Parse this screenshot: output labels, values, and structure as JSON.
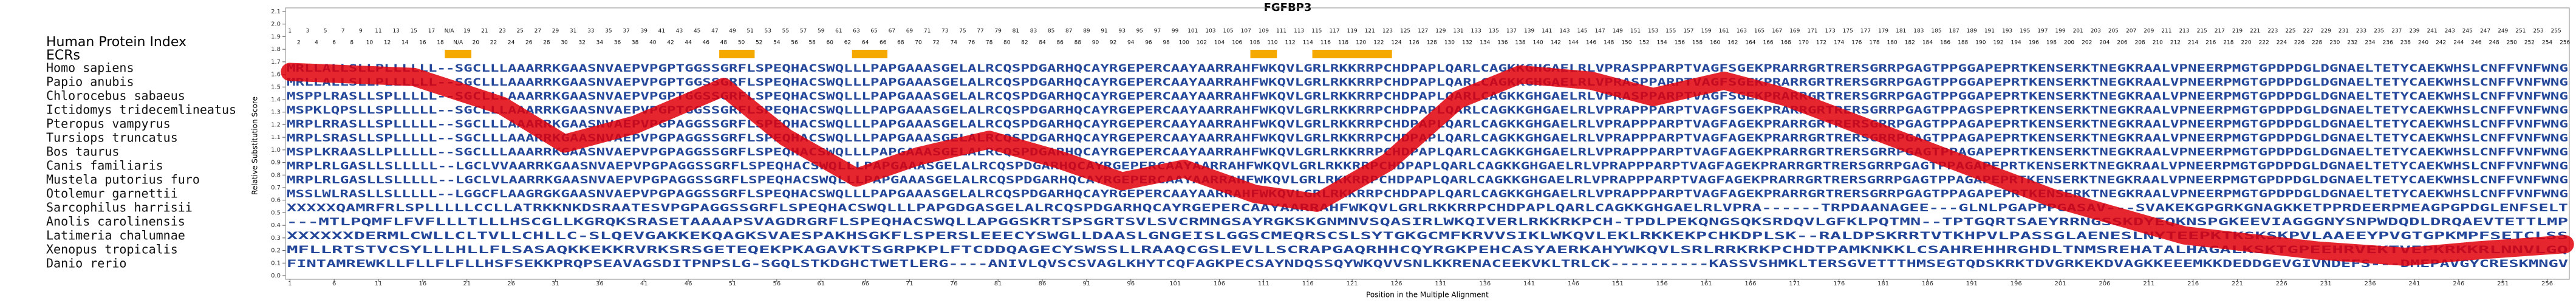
{
  "chart_data": {
    "type": "line",
    "title": "FGFBP3",
    "xlabel": "Position in the Multiple Alignment",
    "ylabel": "Relative Substitution Score",
    "index_label": "Human Protein Index",
    "ecr_label": "ECRs",
    "xlim": [
      0.5,
      258.5
    ],
    "ylim": [
      0,
      2.1
    ],
    "yticks": [
      {
        "value": 0,
        "label": "0.0"
      },
      0.1,
      0.2,
      0.3,
      0.4,
      0.5,
      0.6,
      0.7,
      0.8,
      0.9,
      {
        "value": 1,
        "label": "1.0"
      },
      1.1,
      1.2,
      1.3,
      1.4,
      1.5,
      1.6,
      1.7,
      1.8,
      1.9,
      {
        "value": 2,
        "label": "2.0"
      },
      2.1
    ],
    "xticks": [
      1,
      6,
      11,
      16,
      21,
      26,
      31,
      36,
      41,
      46,
      51,
      56,
      61,
      66,
      71,
      76,
      81,
      86,
      91,
      96,
      101,
      106,
      111,
      116,
      121,
      126,
      131,
      136,
      141,
      146,
      151,
      156,
      161,
      166,
      171,
      176,
      181,
      186,
      191,
      196,
      201,
      206,
      211,
      216,
      221,
      226,
      231,
      236,
      241,
      246,
      251,
      256
    ],
    "human_index": [
      1,
      2,
      3,
      4,
      5,
      6,
      7,
      8,
      9,
      10,
      11,
      12,
      13,
      14,
      15,
      16,
      17,
      18,
      "N/A",
      "N/A",
      19,
      20,
      21,
      22,
      23,
      24,
      25,
      26,
      27,
      28,
      29,
      30,
      31,
      32,
      33,
      34,
      35,
      36,
      37,
      38,
      39,
      40,
      41,
      42,
      43,
      44,
      45,
      46,
      47,
      48,
      49,
      50,
      51,
      52,
      53,
      54,
      55,
      56,
      57,
      58,
      59,
      60,
      61,
      62,
      63,
      64,
      65,
      66,
      67,
      68,
      69,
      70,
      71,
      72,
      73,
      74,
      75,
      76,
      77,
      78,
      79,
      80,
      81,
      82,
      83,
      84,
      85,
      86,
      87,
      88,
      89,
      90,
      91,
      92,
      93,
      94,
      95,
      96,
      97,
      98,
      99,
      100,
      101,
      102,
      103,
      104,
      105,
      106,
      107,
      108,
      109,
      110,
      111,
      112,
      113,
      114,
      115,
      116,
      117,
      118,
      119,
      120,
      121,
      122,
      123,
      124,
      125,
      126,
      127,
      128,
      129,
      130,
      131,
      132,
      133,
      134,
      135,
      136,
      137,
      138,
      139,
      140,
      141,
      142,
      143,
      144,
      145,
      146,
      147,
      148,
      149,
      150,
      151,
      152,
      153,
      154,
      155,
      156,
      157,
      158,
      159,
      160,
      161,
      162,
      163,
      164,
      165,
      166,
      167,
      168,
      169,
      170,
      171,
      172,
      173,
      174,
      175,
      176,
      177,
      178,
      179,
      180,
      181,
      182,
      183,
      184,
      185,
      186,
      187,
      188,
      189,
      190,
      191,
      192,
      193,
      194,
      195,
      196,
      197,
      198,
      199,
      200,
      201,
      202,
      203,
      204,
      205,
      206,
      207,
      208,
      209,
      210,
      211,
      212,
      213,
      214,
      215,
      216,
      217,
      218,
      219,
      220,
      221,
      222,
      223,
      224,
      225,
      226,
      227,
      228,
      229,
      230,
      231,
      232,
      233,
      234,
      235,
      236,
      237,
      238,
      239,
      240,
      241,
      242,
      243,
      244,
      245,
      246,
      247,
      248,
      249,
      250,
      251,
      252,
      253,
      254,
      255,
      256
    ],
    "ecrs": [
      {
        "start": 19,
        "end": 21
      },
      {
        "start": 50,
        "end": 53
      },
      {
        "start": 65,
        "end": 68
      },
      {
        "start": 110,
        "end": 112
      },
      {
        "start": 117,
        "end": 125
      }
    ],
    "species": [
      {
        "name": "Homo sapiens",
        "sequence": "MRLLALLSLLPLLLLLL--SGCLLLAAARRKGAASNVAEPVPGPTGGSSGRFLSPEQHACSWQLLLPAPGAAASGELALRCQSPDGARHQCAYRGEPERCAAYAARRAHFWKQVLGRLRKKRRPCHDPAPLQARLCAGKKGHGAELRLVPRASPPARPTVAGFSGEKPRARRGRTRERSGRRPGAGTPPGGAPEPRTKENSERKTNEGKRAALVPNEERPMGTGPDPDGLDGNAELTETYCAEKWHSLCNFFVNFWNG"
      },
      {
        "name": "Papio anubis",
        "sequence": "MRLLALLSLLPLLLLLL--SGCLLLAAARRKGAASNVAEPVPGPTGGSSGRFLSPEQHACSWQLLLPAPGAAASGELALRCQSPDGARHQCAYRGEPERCAAYAARRAHFWKQVLGRLRKKRRPCHDPAPLQARLCAGKKGHGAELRLVPRASPPARPTVAGFSGEKPRARRGRTRERSGRRPGAGTPPGGAPEPRTKENSERKTNEGKRAALVPNEERPMGTGPDPDGLDGNAELTETYCAEKWHSLCNFFVNFWNG"
      },
      {
        "name": "Chlorocebus sabaeus",
        "sequence": "MSPPLRASLLSPLLLLL--SGCLLLAAARRKGAASNVAEPVPGPTGGSSGRFLSPEQHACSWQLLLPAPGAAASGELALRCQSPDGARHQCAYRGEPERCAAYAARRAHFWKQVLGRLRKKRRPCHDPAPLQARLCAGKKGHGAELRLVPRASPPARPTVAGFSGEKPRARRGRTRERSGRRPGAGTPPGGAPEPRTKENSERKTNEGKRAALVPNEERPMGTGPDPDGLDGNAELTETYCAEKWHSLCNFFVNFWNG"
      },
      {
        "name": "Ictidomys tridecemlineatus",
        "sequence": "MSPKLQPSLLSPLLLLL--SGCLLLAAARRKGAASNVAEPVPGPTGGSSGRFLSPEQHACSWQLLLPAPGAAASGELALRCQSPDGARHQCAYRGEPERCAAYAARRAHFWKQVLGRLRKKRRPCHDPAPLQARLCAGKKGHGAELRLVPRAPPPARPTVAGFSGEKPRARRGRTRERSGRRPGAGTPPAGSPEPRTKENSERKTNEGKRAALVPNEERPMGTGPDPDGLDGNAELTETYCAEKWHSLCNFFVNFWNG"
      },
      {
        "name": "Pteropus vampyrus",
        "sequence": "MRPLRRASLLSPLLLLL--SGCLLLAAARRKGAASNVAEPVPGPAGGSSGRFLSPEQHACSWQLLLPAPGAAASGELALRCQSPDGARHQCAYRGEPERCAAYAARRAHFWKQVLGRLRKKRRPCHDPAPLQARLCAGKKGHGAELRLVPRAPPPARPTVAGFAGEKPRARRGRTRERSGRRPGAGTPPAGAPEPRTKENSERKTNEGKRAALVPNEERPMGTGPDPDGLDGNAELTETYCAEKWHSLCNFFVNFWNG"
      },
      {
        "name": "Tursiops truncatus",
        "sequence": "MRPLSRASLLSPLLLLL--SGCLLLAAARRKGAASNVAEPVPGPAGGSSGRFLSPEQHACSWQLLLPAPGAAASGELALRCQSPDGARHQCAYRGEPERCAAYAARRAHFWKQVLGRLRKKRRPCHDPAPLQARLCAGKKGHGAELRLVPRAPPPARPTVAGFAGEKPRARRGRTRERSGRRPGAGTPPAGAPEPRTKENSERKTNEGKRAALVPNEERPMGTGPDPDGLDGNAELTETYCAEKWHSLCNFFVNFWNG"
      },
      {
        "name": "Bos taurus",
        "sequence": "MSPLKRAASLLPLLLLL--SGCLLLAAARRKGAASNVAEPVPGPAGGSSGRFLSPEQHACSWQLLLPAPGAAASGELALRCQSPDGARHQCAYRGEPERCAAYAARRAHFWKQVLGRLRKKRRPCHDPAPLQARLCAGKKGHGAELRLVPRAPPPARPTVAGFAGEKPRARRGRTRERSGRRPGAGTPPAGAPEPRTKENSERKTNEGKRAALVPNEERPMGTGPDPDGLDGNAELTETYCAEKWHSLCNFFVNFWNG"
      },
      {
        "name": "Canis familiaris",
        "sequence": "MRPLRLGASLLSLLLLL--LGCLVVAARRKGAASNVAEPVPGPAGGSSGRFLSPEQHACSWQLLLPAPGAAASGELALRCQSPDGARHQCAYRGEPERCAAYAARRAHFWKQVLGRLRKKRRPCHDPAPLQARLCAGKKGHGAELRLVPRAPPPARPTVAGFAGEKPRARRGRTRERSGRRPGAGTPPAGAPEPRTKENSERKTNEGKRAALVPNEERPMGTGPDPDGLDGNAELTETYCAEKWHSLCNFFVNFWNG"
      },
      {
        "name": "Mustela putorius furo",
        "sequence": "MRPLRLGASLLSLLLLL--LGCLVLAARRKGAASNVAEPVPGPAGGSSGRFLSPEQHACSWQLLLPAPGAAASGELALRCQSPDGARHQCAYRGEPERCAAYAARRAHFWKQVLGRLRKKRRPCHDPAPLQARLCAGKKGHGAELRLVPRAPPPARPTVAGFAGEKPRARRGRTRERSGRRPGAGTPPAGAPEPRTKENSERKTNEGKRAALVPNEERPMGTGPDPDGLDGNAELTETYCAEKWHSLCNFFVNFWNG"
      },
      {
        "name": "Otolemur garnettii",
        "sequence": "MSSLWLRASLLSLLLLL--LGGCFLAAGRGKGAASNVAEPVPGPAGGSSGRFLSPEQHACSWQLLLPAPGAAASGELALRCQSPDGARHQCAYRGEPERCAAYAARRAHFWKQVLGRLRKKRRPCHDPAPLQARLCAGKKGHGAELRLVPRAPPPARPTVAGFAGEKPRARRGRTRERSGRRPGAGTPPAGAPEPRTKENSERKTNEGKRAALVPNEERPMGTGPDPDGLDGNAELTETYCAEKWHSLCNFFVNFWNG"
      },
      {
        "name": "Sarcophilus harrisii",
        "sequence": "XXXXXQAMRFRLSPLLLLLCCLLATRKKNKDSRAATESVPGPAGGSSGRFLSPEQHACSWQLLLPAPGDGASGELALRCQSPDGARHQCAYRGEPERCAAYAARRAHFWKQVLGRLRKKRRPCHDPAPLQARLCAGKKGHGAELRLVPRA------TRPDAANAGEE---GLNLPGAPPPGASAV---SVAKEKGPGRKGNAGKKETPPRDEERPMEAGPGPDGLENFSELT"
      },
      {
        "name": "Anolis carolinensis",
        "sequence": "---MTLPQMFLFVFLLLTLLLHSCGLLKGRQKSRASETAAAAPSVAGDRGRFLSPEQHACSWQLLAPGGSKRTSPSGRTSVLSVCRMNGSAYRGKSKGNMNVSQASIRLWKQIVERLRKKRKPCH-TPDLPEKQNGSQKSRDQVLGFKLPQTMN--TPTGQRTSAEYRRNGSSKDYEQKNSPGKEEVIAGGGNYSNPWDQDLDRQAEVTETTLMP"
      },
      {
        "name": "Latimeria chalumnae",
        "sequence": "XXXXXXDERMLCWLLCLTVLLCHLLC-SLQEVGAKKEKQAGKSVAESPAKHSGKFLSPERSLEEECYSWGLLDAASLGNGEISLGGSCMEQRSCSLSYTGKGCMFKRVVSIKLWKQVLEKLRKKEKPCHKDPLSK--RALDPSKRRTVTKHPVLPASSGLAENESLNYTEEPKTKSKSKPVLAAEEYPVGTGPKMPFSETCLSS"
      },
      {
        "name": "Xenopus tropicalis",
        "sequence": "MFLLRTSTVCSYLLLHLLFLSASAQKKEKKRVRKSRSGETEQEKPKAGAVKTSGRPKPLFTCDDQAGECYSWSSLLRAAQCGSLEVLLSCRAPGAQRHHCQYRGKPEHCASYAERKAHYWKQVLSRLRRKRKPCHDTPAMKNKKLCSAHREHHRGHDLTNMSREHATALHAGALKSKTGPEEHRVEKTVEPKRKKRLNNVLGQ"
      },
      {
        "name": "Danio rerio",
        "sequence": "FINTAMREWKLLFLLFLFLLHSFSEKKPRQPSEAVAGSDITPNPSLG-SGQLSTKDGHCTWETLERG----ANIVLQVSCSVAGLKHYTCQFAGKPECSAYNDQSSQYWKQVVSNLKKRENACEEKVKLTRLCK----------KASSVSHMKLTERSGVETTTHMSEGTQDSKRKTDVGRKEKDVAGKKEEEMKKDEDDGEVGIVNDEFS---DMEPAVGYCRESKMNGV"
      }
    ],
    "series": [
      {
        "name": "Relative Substitution Score",
        "color": "#e0000a",
        "x": [
          1,
          15,
          25,
          32,
          40,
          50,
          57,
          65,
          72,
          80,
          88,
          95,
          102,
          110,
          117,
          125,
          133,
          140,
          148,
          155,
          163,
          170,
          185,
          200,
          215,
          230,
          240,
          248,
          258
        ],
        "values": [
          1.62,
          1.58,
          1.35,
          1.05,
          1.2,
          1.5,
          1.1,
          0.78,
          0.95,
          1.08,
          0.92,
          0.75,
          0.85,
          0.65,
          0.58,
          0.9,
          1.4,
          1.6,
          1.55,
          1.42,
          1.55,
          1.42,
          1.02,
          0.62,
          0.32,
          0.2,
          0.15,
          0.2,
          0.25
        ]
      }
    ]
  }
}
